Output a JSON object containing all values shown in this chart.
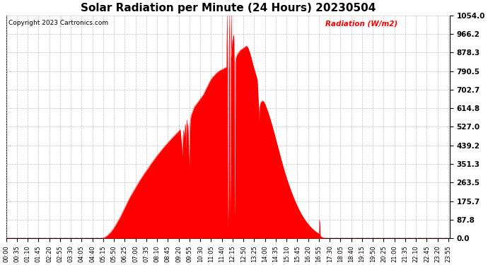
{
  "title": "Solar Radiation per Minute (24 Hours) 20230504",
  "copyright_text": "Copyright 2023 Cartronics.com",
  "legend_label": "Radiation (W/m2)",
  "yticks": [
    0.0,
    87.8,
    175.7,
    263.5,
    351.3,
    439.2,
    527.0,
    614.8,
    702.7,
    790.5,
    878.3,
    966.2,
    1054.0
  ],
  "ymax": 1054.0,
  "ymin": 0.0,
  "fill_color": "#FF0000",
  "line_color": "#FF0000",
  "background_color": "#FFFFFF",
  "grid_color": "#BBBBBB",
  "dashed_line_color": "#FF0000",
  "title_fontsize": 11,
  "legend_color": "#FF0000",
  "x_tick_interval_minutes": 35,
  "total_minutes": 1440,
  "control_points": [
    [
      0,
      0
    ],
    [
      314,
      0
    ],
    [
      315,
      2
    ],
    [
      320,
      5
    ],
    [
      330,
      15
    ],
    [
      340,
      30
    ],
    [
      350,
      50
    ],
    [
      360,
      75
    ],
    [
      370,
      100
    ],
    [
      380,
      130
    ],
    [
      390,
      160
    ],
    [
      400,
      190
    ],
    [
      410,
      215
    ],
    [
      420,
      240
    ],
    [
      430,
      265
    ],
    [
      440,
      288
    ],
    [
      450,
      310
    ],
    [
      460,
      330
    ],
    [
      470,
      352
    ],
    [
      480,
      372
    ],
    [
      490,
      392
    ],
    [
      500,
      410
    ],
    [
      510,
      428
    ],
    [
      520,
      445
    ],
    [
      530,
      461
    ],
    [
      540,
      477
    ],
    [
      550,
      492
    ],
    [
      560,
      507
    ],
    [
      565,
      514
    ],
    [
      570,
      430
    ],
    [
      572,
      390
    ],
    [
      574,
      480
    ],
    [
      576,
      510
    ],
    [
      578,
      480
    ],
    [
      580,
      520
    ],
    [
      582,
      540
    ],
    [
      583,
      480
    ],
    [
      584,
      420
    ],
    [
      585,
      500
    ],
    [
      586,
      540
    ],
    [
      587,
      560
    ],
    [
      588,
      510
    ],
    [
      590,
      540
    ],
    [
      592,
      430
    ],
    [
      593,
      380
    ],
    [
      594,
      320
    ],
    [
      595,
      420
    ],
    [
      596,
      500
    ],
    [
      597,
      540
    ],
    [
      598,
      560
    ],
    [
      600,
      580
    ],
    [
      605,
      600
    ],
    [
      610,
      620
    ],
    [
      615,
      630
    ],
    [
      620,
      640
    ],
    [
      625,
      650
    ],
    [
      630,
      660
    ],
    [
      635,
      670
    ],
    [
      640,
      680
    ],
    [
      645,
      695
    ],
    [
      650,
      710
    ],
    [
      655,
      725
    ],
    [
      660,
      740
    ],
    [
      665,
      752
    ],
    [
      670,
      762
    ],
    [
      675,
      770
    ],
    [
      680,
      778
    ],
    [
      685,
      785
    ],
    [
      690,
      790
    ],
    [
      695,
      795
    ],
    [
      700,
      798
    ],
    [
      705,
      802
    ],
    [
      710,
      806
    ],
    [
      715,
      810
    ],
    [
      718,
      1054
    ],
    [
      719,
      100
    ],
    [
      720,
      50
    ],
    [
      721,
      200
    ],
    [
      722,
      800
    ],
    [
      723,
      820
    ],
    [
      725,
      1054
    ],
    [
      726,
      200
    ],
    [
      727,
      100
    ],
    [
      728,
      300
    ],
    [
      729,
      850
    ],
    [
      730,
      870
    ],
    [
      731,
      1054
    ],
    [
      732,
      900
    ],
    [
      733,
      920
    ],
    [
      735,
      940
    ],
    [
      737,
      955
    ],
    [
      739,
      960
    ],
    [
      740,
      820
    ],
    [
      741,
      200
    ],
    [
      742,
      100
    ],
    [
      743,
      300
    ],
    [
      744,
      830
    ],
    [
      745,
      850
    ],
    [
      747,
      860
    ],
    [
      750,
      870
    ],
    [
      755,
      880
    ],
    [
      760,
      890
    ],
    [
      765,
      895
    ],
    [
      770,
      900
    ],
    [
      775,
      905
    ],
    [
      780,
      910
    ],
    [
      785,
      900
    ],
    [
      790,
      880
    ],
    [
      795,
      855
    ],
    [
      800,
      825
    ],
    [
      805,
      800
    ],
    [
      810,
      775
    ],
    [
      815,
      748
    ],
    [
      820,
      600
    ],
    [
      821,
      550
    ],
    [
      822,
      620
    ],
    [
      825,
      640
    ],
    [
      830,
      650
    ],
    [
      835,
      648
    ],
    [
      840,
      635
    ],
    [
      845,
      615
    ],
    [
      850,
      595
    ],
    [
      855,
      572
    ],
    [
      860,
      548
    ],
    [
      865,
      522
    ],
    [
      870,
      495
    ],
    [
      875,
      468
    ],
    [
      880,
      440
    ],
    [
      885,
      413
    ],
    [
      890,
      385
    ],
    [
      895,
      358
    ],
    [
      900,
      332
    ],
    [
      905,
      308
    ],
    [
      910,
      284
    ],
    [
      915,
      262
    ],
    [
      920,
      241
    ],
    [
      925,
      221
    ],
    [
      930,
      202
    ],
    [
      935,
      184
    ],
    [
      940,
      167
    ],
    [
      945,
      151
    ],
    [
      950,
      136
    ],
    [
      955,
      122
    ],
    [
      960,
      109
    ],
    [
      965,
      97
    ],
    [
      970,
      86
    ],
    [
      975,
      76
    ],
    [
      980,
      67
    ],
    [
      985,
      58
    ],
    [
      990,
      50
    ],
    [
      995,
      43
    ],
    [
      1000,
      37
    ],
    [
      1005,
      31
    ],
    [
      1010,
      26
    ],
    [
      1015,
      21
    ],
    [
      1017,
      88
    ],
    [
      1018,
      60
    ],
    [
      1019,
      15
    ],
    [
      1020,
      10
    ],
    [
      1025,
      5
    ],
    [
      1030,
      2
    ],
    [
      1035,
      0
    ],
    [
      1439,
      0
    ]
  ]
}
